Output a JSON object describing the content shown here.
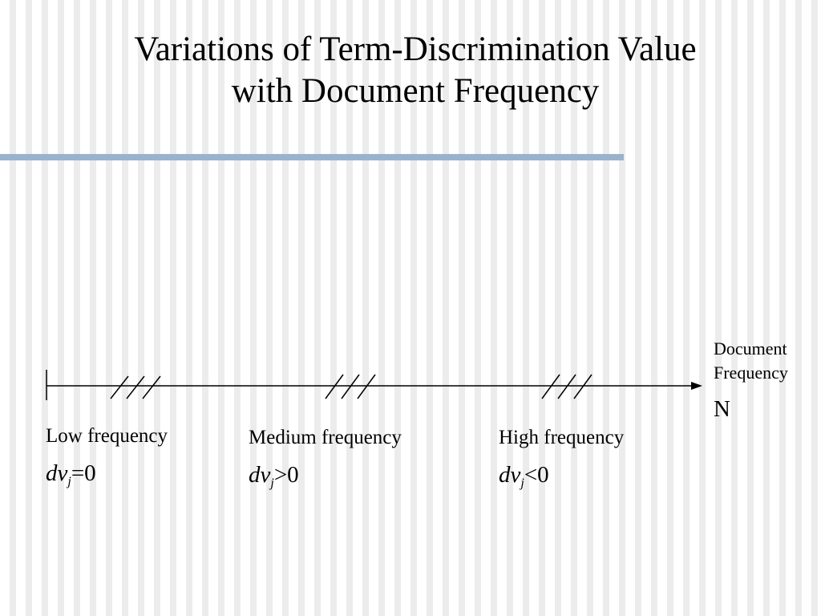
{
  "title": {
    "line1": "Variations of Term-Discrimination Value",
    "line2": "with Document Frequency"
  },
  "axis": {
    "label_line1": "Document",
    "label_line2": "Frequency",
    "end_label": "N"
  },
  "regions": [
    {
      "label": "Low frequency",
      "var": "dv",
      "sub": "j",
      "relation": "=0"
    },
    {
      "label": "Medium frequency",
      "var": "dv",
      "sub": "j",
      "relation": ">0"
    },
    {
      "label": "High frequency",
      "var": "dv",
      "sub": "j",
      "relation": "<0"
    }
  ],
  "colors": {
    "title_rule": "#9ab3cc",
    "ink": "#000000"
  }
}
